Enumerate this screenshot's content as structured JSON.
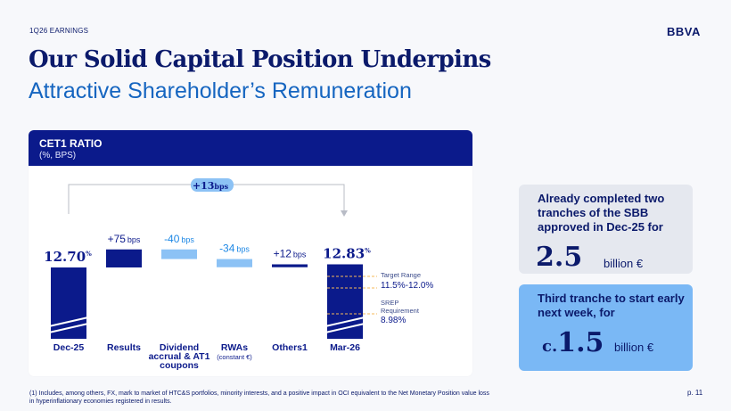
{
  "header": {
    "section": "1Q26 EARNINGS",
    "logo": "BBVA"
  },
  "title": {
    "line1": "Our Solid Capital Position Underpins",
    "line2": "Attractive Shareholder’s Remuneration"
  },
  "panel": {
    "title": "CET1 RATIO",
    "subtitle": "(%, BPS)"
  },
  "chart_data": {
    "type": "bar",
    "subtype": "waterfall",
    "unit": "%",
    "categories": [
      "Dec-25",
      "Results",
      "Dividend accrual & AT1 coupons",
      "RWAs (constant €)",
      "Others(1)",
      "Mar-26"
    ],
    "category_labels": [
      [
        "Dec-25"
      ],
      [
        "Results"
      ],
      [
        "Dividend",
        "accrual & AT1",
        "coupons"
      ],
      [
        "RWAs",
        "(constant €)"
      ],
      [
        "Others1"
      ],
      [
        "Mar-26"
      ]
    ],
    "start": {
      "label": "Dec-25",
      "value": 12.7
    },
    "steps": [
      {
        "label": "Results",
        "bps": 75,
        "display": "+75",
        "unit": "bps"
      },
      {
        "label": "Dividend accrual & AT1 coupons",
        "bps": -40,
        "display": "-40",
        "unit": "bps"
      },
      {
        "label": "RWAs (constant €)",
        "bps": -34,
        "display": "-34",
        "unit": "bps"
      },
      {
        "label": "Others(1)",
        "bps": 12,
        "display": "+12",
        "unit": "bps"
      }
    ],
    "end": {
      "label": "Mar-26",
      "value": 12.83
    },
    "start_label": {
      "value": "12.70",
      "unit": "%"
    },
    "end_label": {
      "value": "12.83",
      "unit": "%"
    },
    "total_change": {
      "value": "+13",
      "unit": "bps"
    },
    "annotations": [
      {
        "label": "Target Range",
        "value_text": "11.5%-12.0%",
        "low": 11.5,
        "high": 12.0
      },
      {
        "label": "SREP Requirement",
        "value_text": "8.98%",
        "value": 8.98
      }
    ],
    "colors": {
      "positive": "#0b1a8b",
      "negative": "#8cc2f5",
      "totals": "#0b1a8b",
      "dashed": "#f5b85a"
    }
  },
  "cards": [
    {
      "text": "Already completed two tranches of the SBB approved in Dec-25 for",
      "value": "2.5",
      "unit": "billion €"
    },
    {
      "text": "Third tranche to start early next week, for",
      "prefix": "c.",
      "value": "1.5",
      "unit": "billion €"
    }
  ],
  "footnote": "(1) Includes, among others, FX, mark to market of HTC&S portfolios, minority interests, and a positive impact in OCI equivalent to the Net Monetary Position value loss in hyperinflationary economies registered in results.",
  "page": "p. 11"
}
